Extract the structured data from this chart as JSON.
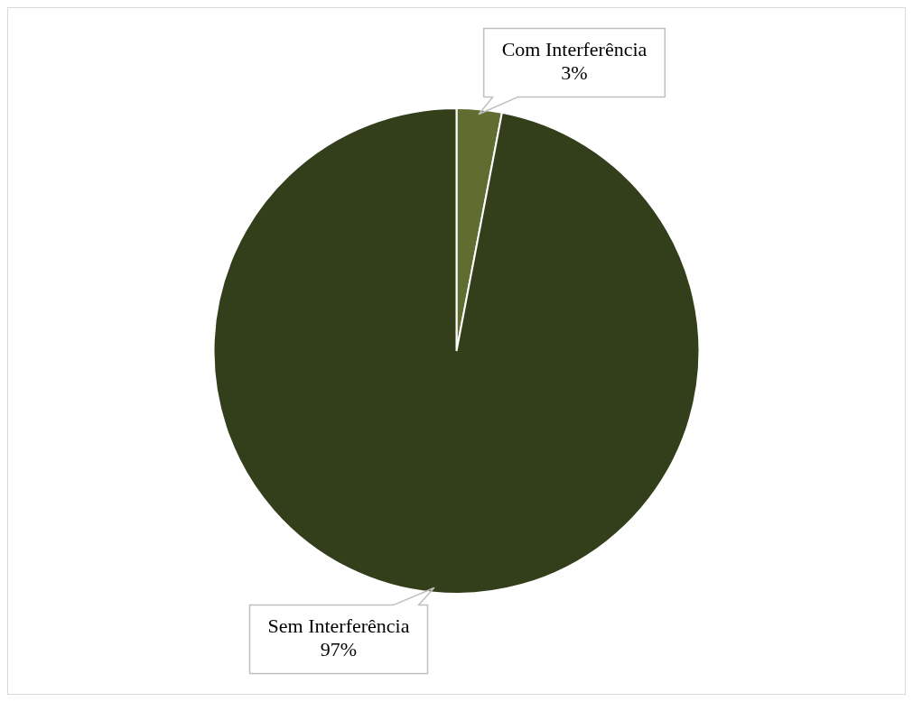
{
  "chart_data": {
    "type": "pie",
    "categories": [
      "Com Interferência",
      "Sem Interferência"
    ],
    "values": [
      3,
      97
    ],
    "colors": [
      "#5f6e30",
      "#333f1a"
    ],
    "value_labels": [
      "3%",
      "97%"
    ]
  }
}
